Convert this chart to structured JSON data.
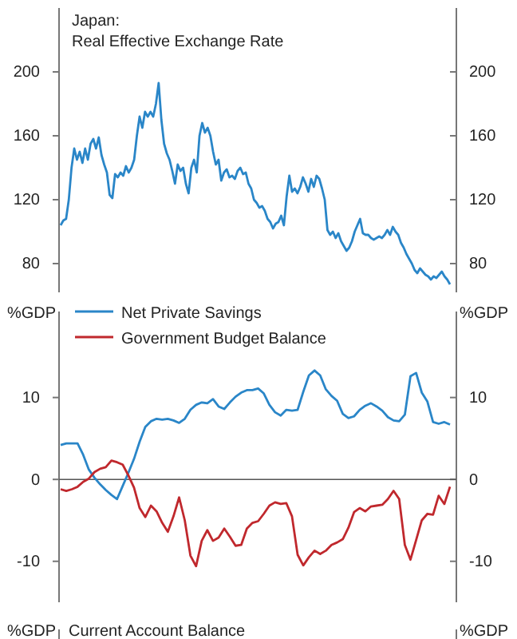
{
  "chart_data": [
    {
      "type": "line",
      "title": "Japan:",
      "subtitle": "Real Effective Exchange Rate",
      "categories": [
        null,
        null,
        null,
        null,
        null,
        null,
        null,
        null,
        null,
        null,
        null,
        null,
        null,
        null,
        null,
        null,
        null,
        null,
        null,
        null,
        null,
        null,
        null,
        null,
        null,
        null,
        null,
        null,
        null,
        null,
        null,
        null,
        null,
        null,
        null,
        null,
        null,
        null,
        null,
        null,
        null,
        null,
        null,
        null,
        null,
        null,
        null,
        null,
        null,
        null,
        null,
        null,
        null,
        null,
        null,
        null,
        null,
        null,
        null,
        null,
        null,
        null,
        null,
        null,
        null,
        null,
        null,
        null,
        null,
        null,
        null,
        null,
        null,
        null,
        null,
        null,
        null,
        null,
        null,
        null,
        null,
        null,
        null,
        null,
        null,
        null,
        null,
        null,
        null,
        null,
        null,
        null,
        null,
        null,
        null,
        null,
        null,
        null,
        null,
        null,
        null,
        null,
        null,
        null,
        null,
        null,
        null,
        null,
        null,
        null,
        null,
        null,
        null,
        null,
        null,
        null,
        null,
        null,
        null,
        null,
        null,
        null,
        null,
        null,
        null,
        null,
        null,
        null,
        null,
        null,
        null,
        null,
        null,
        null,
        null,
        null,
        null,
        null,
        null,
        null,
        null,
        null,
        null,
        null
      ],
      "series": [
        {
          "color": "#2a86c8",
          "values": [
            104,
            107,
            108,
            120,
            140,
            152,
            145,
            150,
            143,
            152,
            145,
            155,
            158,
            152,
            159,
            148,
            142,
            137,
            123,
            121,
            136,
            134,
            137,
            135,
            141,
            137,
            140,
            145,
            160,
            172,
            165,
            175,
            172,
            175,
            172,
            180,
            193,
            170,
            155,
            149,
            145,
            138,
            130,
            142,
            138,
            140,
            130,
            124,
            140,
            145,
            137,
            160,
            168,
            162,
            165,
            160,
            150,
            142,
            145,
            132,
            137,
            139,
            134,
            135,
            133,
            138,
            140,
            136,
            137,
            130,
            127,
            120,
            118,
            115,
            116,
            113,
            108,
            106,
            102,
            105,
            106,
            110,
            104,
            122,
            135,
            125,
            127,
            124,
            128,
            134,
            130,
            125,
            133,
            128,
            135,
            133,
            127,
            120,
            101,
            98,
            100,
            96,
            99,
            94,
            91,
            88,
            90,
            94,
            100,
            104,
            108,
            99,
            98,
            98,
            96,
            95,
            96,
            97,
            96,
            98,
            101,
            98,
            103,
            100,
            98,
            93,
            90,
            86,
            83,
            80,
            76,
            74,
            77,
            75,
            73,
            72,
            70,
            72,
            71,
            73,
            75,
            72,
            70,
            67
          ]
        }
      ],
      "ylim": [
        62,
        240
      ],
      "yticks": [
        80,
        120,
        160,
        200
      ],
      "y2lim": [
        62,
        240
      ],
      "y2ticks": [
        80,
        120,
        160,
        200
      ]
    },
    {
      "type": "line",
      "ylabel": "%GDP",
      "y2label": "%GDP",
      "categories": [
        null,
        null,
        null,
        null,
        null,
        null,
        null,
        null,
        null,
        null,
        null,
        null,
        null,
        null,
        null,
        null,
        null,
        null,
        null,
        null,
        null,
        null,
        null,
        null,
        null,
        null,
        null,
        null,
        null,
        null,
        null,
        null,
        null,
        null,
        null,
        null,
        null,
        null,
        null,
        null,
        null,
        null,
        null,
        null,
        null,
        null,
        null,
        null,
        null,
        null,
        null,
        null,
        null,
        null,
        null,
        null,
        null,
        null,
        null,
        null,
        null,
        null,
        null,
        null,
        null,
        null,
        null,
        null,
        null,
        null
      ],
      "series": [
        {
          "name": "Net Private Savings",
          "color": "#2a86c8",
          "values": [
            4.2,
            4.4,
            4.4,
            4.4,
            3,
            1.2,
            0.2,
            -0.6,
            -1.3,
            -1.9,
            -2.4,
            -0.8,
            0.8,
            2.5,
            4.6,
            6.4,
            7.1,
            7.4,
            7.3,
            7.4,
            7.2,
            6.9,
            7.4,
            8.5,
            9.1,
            9.4,
            9.3,
            9.8,
            8.9,
            8.6,
            9.4,
            10.1,
            10.6,
            10.9,
            10.9,
            11.1,
            10.5,
            9.1,
            8.2,
            7.8,
            8.5,
            8.4,
            8.5,
            10.7,
            12.7,
            13.3,
            12.7,
            11,
            10.2,
            9.6,
            8,
            7.5,
            7.7,
            8.5,
            9,
            9.3,
            8.9,
            8.4,
            7.6,
            7.2,
            7.1,
            7.9,
            12.6,
            13,
            10.6,
            9.5,
            7,
            6.8,
            7,
            6.7
          ]
        },
        {
          "name": "Government Budget Balance",
          "color": "#c0282d",
          "values": [
            -1.2,
            -1.4,
            -1.2,
            -0.9,
            -0.3,
            0.1,
            0.9,
            1.3,
            1.5,
            2.3,
            2.1,
            1.8,
            0.5,
            -1,
            -3.5,
            -4.6,
            -3.2,
            -3.9,
            -5.3,
            -6.4,
            -4.5,
            -2.2,
            -5,
            -9.3,
            -10.6,
            -7.5,
            -6.2,
            -7.5,
            -7.1,
            -6,
            -7,
            -8.1,
            -8,
            -6,
            -5.3,
            -5.1,
            -4.2,
            -3.2,
            -2.8,
            -3,
            -2.9,
            -4.5,
            -9.2,
            -10.5,
            -9.5,
            -8.7,
            -9.1,
            -8.7,
            -8,
            -7.7,
            -7.3,
            -5.9,
            -4,
            -3.5,
            -3.9,
            -3.3,
            -3.2,
            -3.1,
            -2.4,
            -1.4,
            -2.4,
            -8,
            -9.8,
            -7.4,
            -5,
            -4.2,
            -4.3,
            -2,
            -3,
            -0.9
          ]
        }
      ],
      "ylim": [
        -15,
        20.5
      ],
      "yticks": [
        -10,
        0,
        10
      ],
      "y2lim": [
        -15,
        20.5
      ],
      "y2ticks": [
        -10,
        0,
        10
      ],
      "ref_lines": [
        {
          "axis": "y",
          "value": 0,
          "color": "#555555"
        }
      ],
      "legend": "top left"
    },
    {
      "type": "other",
      "title": "Current Account Balance",
      "ylabel": "%GDP",
      "y2label": "%GDP"
    }
  ]
}
